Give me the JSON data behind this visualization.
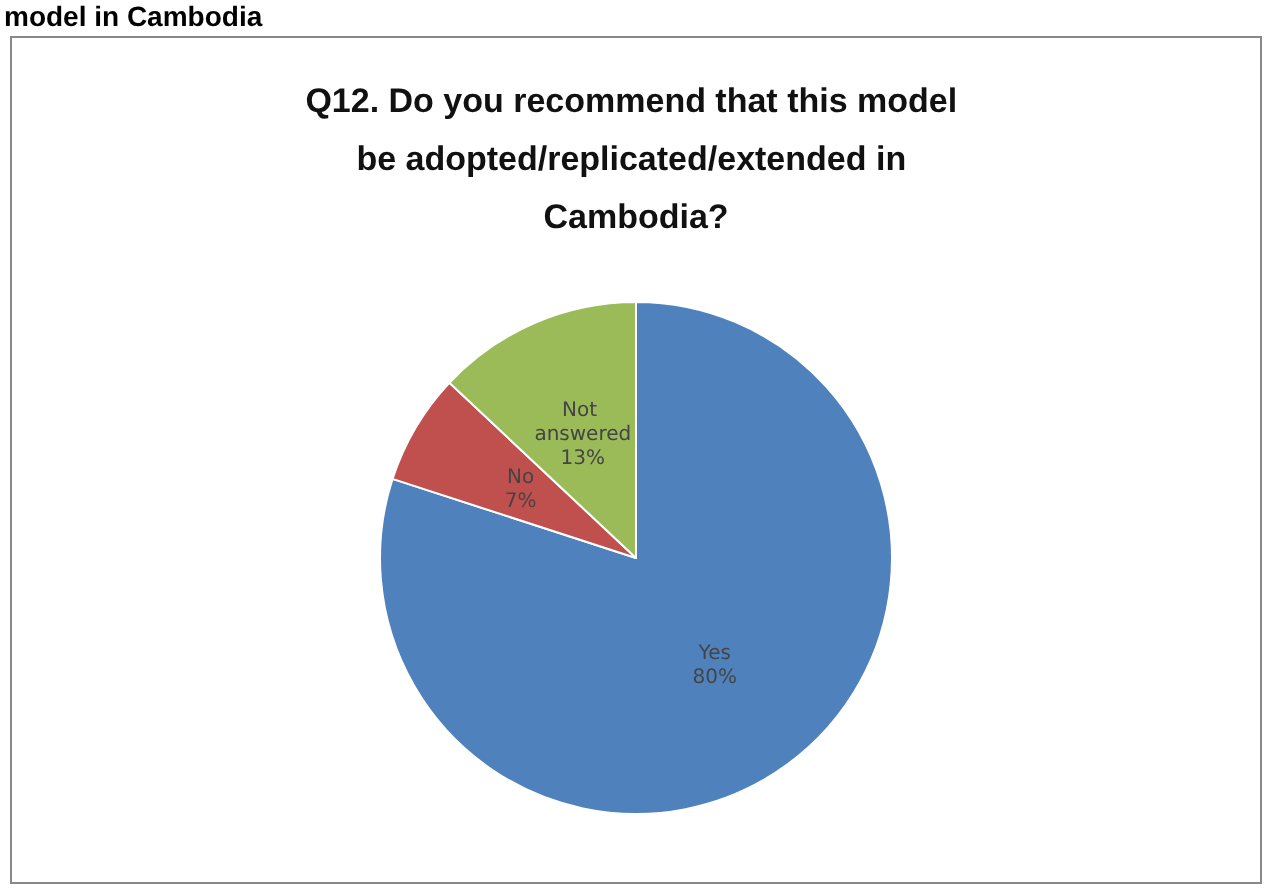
{
  "chart_data": {
    "type": "pie",
    "title": "Q12. Do you recommend that this model be adopted/replicated/extended in Cambodia?",
    "annotations": [
      "model in Cambodia"
    ],
    "categories": [
      "Yes",
      "No",
      "Not answered"
    ],
    "values": [
      80,
      7,
      13
    ],
    "value_labels": [
      "80%",
      "7%",
      "13%"
    ],
    "colors": [
      "#4f81bd",
      "#c0504d",
      "#9bbb59"
    ],
    "legend": false
  }
}
